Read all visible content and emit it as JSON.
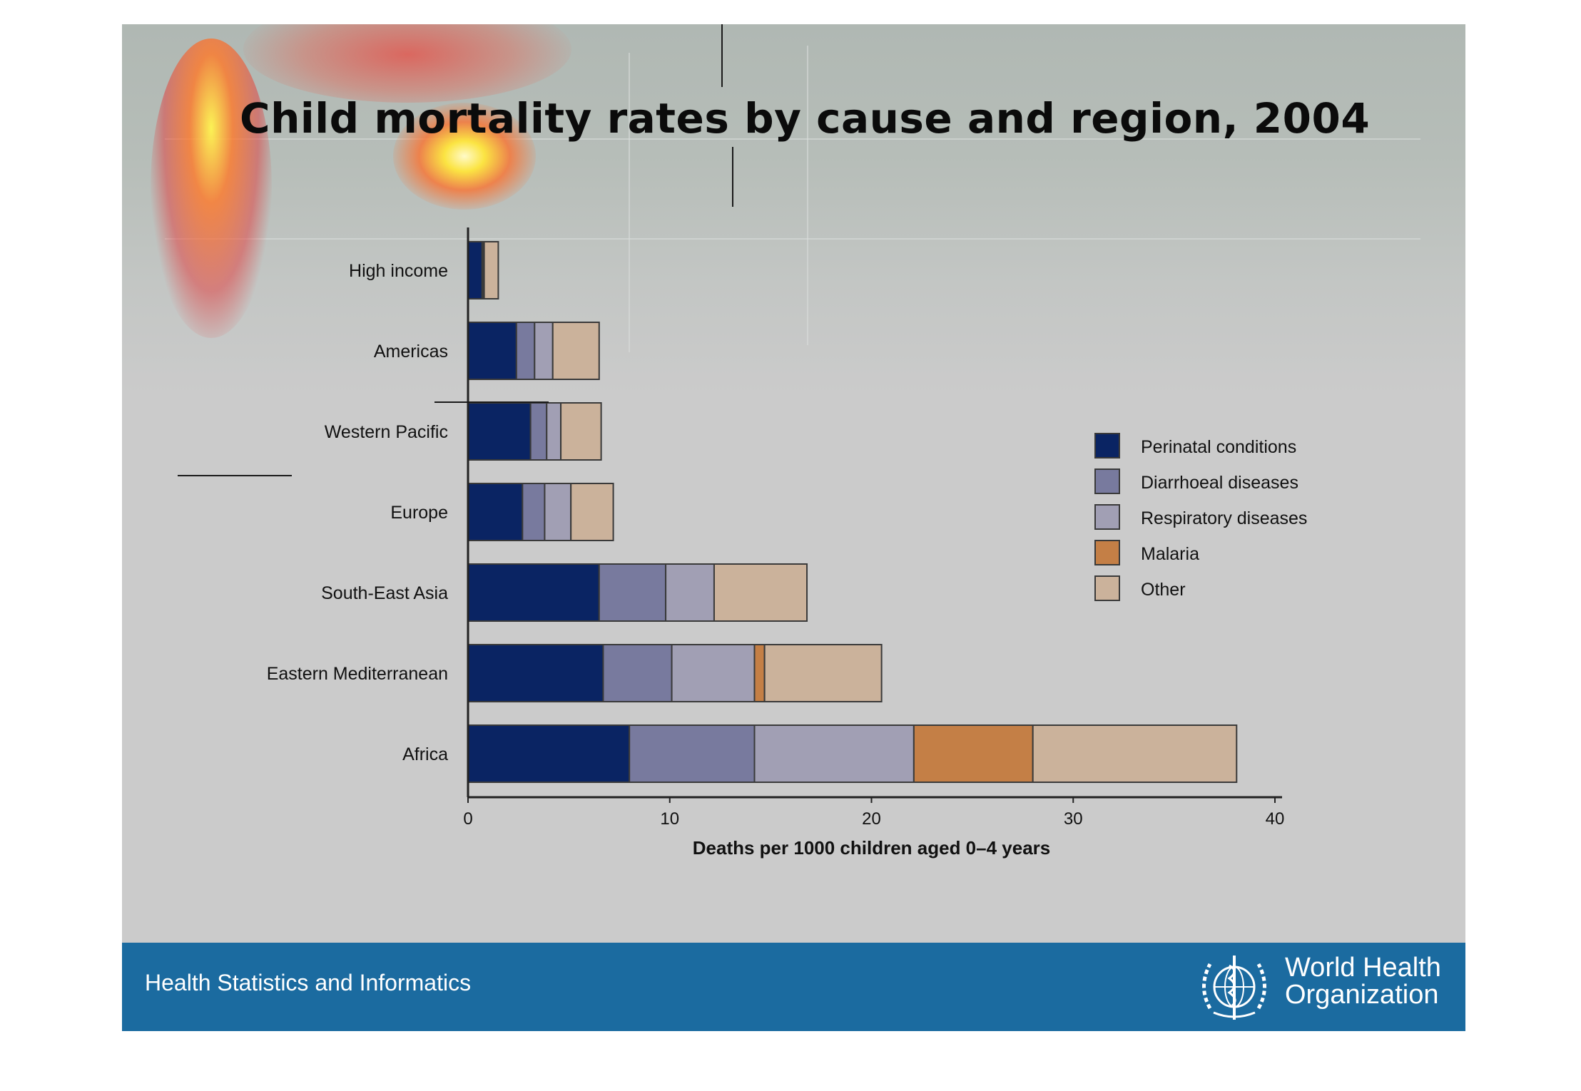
{
  "slide": {
    "title": "Child mortality rates by cause and region, 2004",
    "footer_text": "Health Statistics and Informatics",
    "org_name_line1": "World Health",
    "org_name_line2": "Organization",
    "org_emblem_icon": "who-emblem-icon"
  },
  "colors": {
    "slide_bg": "#cbcbcb",
    "footer_bg": "#1b6ba0",
    "Perinatal conditions": "#0a2463",
    "Diarrhoeal diseases": "#787a9e",
    "Respiratory diseases": "#a19fb4",
    "Malaria": "#c47f46",
    "Other": "#cbb29b"
  },
  "chart_data": {
    "type": "bar",
    "orientation": "horizontal",
    "stacked": true,
    "title": "",
    "xlabel": "Deaths per 1000 children aged 0–4 years",
    "ylabel": "",
    "xlim": [
      0,
      40
    ],
    "xticks": [
      0,
      10,
      20,
      30,
      40
    ],
    "grid": false,
    "legend_position": "right",
    "categories": [
      "High income",
      "Americas",
      "Western Pacific",
      "Europe",
      "South-East Asia",
      "Eastern Mediterranean",
      "Africa"
    ],
    "series": [
      {
        "name": "Perinatal conditions",
        "values": [
          0.7,
          2.4,
          3.1,
          2.7,
          6.5,
          6.7,
          8.0
        ]
      },
      {
        "name": "Diarrhoeal diseases",
        "values": [
          0.05,
          0.9,
          0.8,
          1.1,
          3.3,
          3.4,
          6.2
        ]
      },
      {
        "name": "Respiratory diseases",
        "values": [
          0.05,
          0.9,
          0.7,
          1.3,
          2.4,
          4.1,
          7.9
        ]
      },
      {
        "name": "Malaria",
        "values": [
          0,
          0,
          0,
          0,
          0,
          0.5,
          5.9
        ]
      },
      {
        "name": "Other",
        "values": [
          0.7,
          2.3,
          2.0,
          2.1,
          4.6,
          5.8,
          10.1
        ]
      }
    ]
  }
}
